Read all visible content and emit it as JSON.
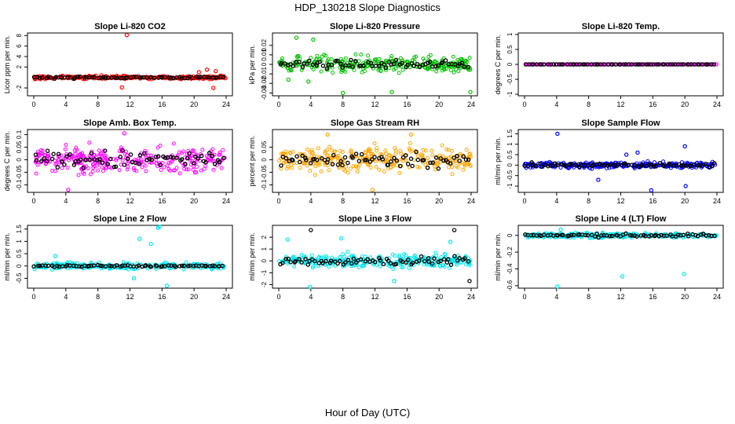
{
  "figure": {
    "title": "HDP_130218  Slope Diagnostics",
    "xlabel": "Hour of Day (UTC)"
  },
  "chart_data": [
    {
      "type": "scatter",
      "title": "Slope Li-820 CO2",
      "ylabel": "Licor ppm per min.",
      "xlim": [
        0,
        24
      ],
      "ylim": [
        -3.5,
        8.5
      ],
      "xticks": [
        0,
        4,
        8,
        12,
        16,
        20,
        24
      ],
      "yticks": [
        -2,
        2,
        4,
        6,
        8
      ],
      "series": [
        {
          "color": "#ff0000",
          "center": 0,
          "spread": 0.35,
          "outliers": [
            [
              11.6,
              8.1
            ],
            [
              11.0,
              -1.9
            ],
            [
              21.6,
              1.5
            ],
            [
              22.4,
              -2.0
            ],
            [
              22.7,
              1.2
            ],
            [
              20.6,
              1.0
            ]
          ]
        },
        {
          "color": "#000000",
          "center": 0,
          "spread": 0.2,
          "outliers": []
        }
      ]
    },
    {
      "type": "scatter",
      "title": "Slope Li-820 Pressure",
      "ylabel": "kPa per min.",
      "xlim": [
        0,
        24
      ],
      "ylim": [
        -0.033,
        0.033
      ],
      "xticks": [
        0,
        4,
        8,
        12,
        16,
        20,
        24
      ],
      "yticks": [
        -0.03,
        -0.02,
        -0.01,
        0.0,
        0.01,
        0.02
      ],
      "series": [
        {
          "color": "#00c000",
          "center": 0,
          "spread": 0.009,
          "outliers": [
            [
              8.0,
              -0.03
            ],
            [
              14.1,
              -0.029
            ],
            [
              23.9,
              -0.029
            ],
            [
              1.2,
              -0.016
            ],
            [
              3.7,
              -0.018
            ],
            [
              2.2,
              0.028
            ],
            [
              4.3,
              0.026
            ]
          ]
        },
        {
          "color": "#000000",
          "center": 0,
          "spread": 0.004,
          "outliers": []
        }
      ]
    },
    {
      "type": "scatter",
      "title": "Slope Li-820 Temp.",
      "ylabel": "degrees C per min.",
      "xlim": [
        0,
        24
      ],
      "ylim": [
        -1.05,
        1.05
      ],
      "xticks": [
        0,
        4,
        8,
        12,
        16,
        20,
        24
      ],
      "yticks": [
        -1.0,
        -0.5,
        0.0,
        0.5,
        1.0
      ],
      "series": [
        {
          "color": "#ff00ff",
          "center": 0,
          "spread": 0.0,
          "outliers": []
        },
        {
          "color": "#000000",
          "center": 0,
          "spread": 0.0,
          "outliers": []
        }
      ]
    },
    {
      "type": "scatter",
      "title": "Slope Amb. Box Temp.",
      "ylabel": "degrees C per min.",
      "xlim": [
        0,
        24
      ],
      "ylim": [
        -0.13,
        0.12
      ],
      "xticks": [
        0,
        4,
        8,
        12,
        16,
        20,
        24
      ],
      "yticks": [
        -0.1,
        -0.05,
        0.0,
        0.05,
        0.1
      ],
      "series": [
        {
          "color": "#ff00ff",
          "center": 0,
          "spread": 0.05,
          "outliers": [
            [
              4.3,
              -0.12
            ],
            [
              11.3,
              0.105
            ]
          ]
        },
        {
          "color": "#000000",
          "center": 0,
          "spread": 0.04,
          "outliers": []
        }
      ]
    },
    {
      "type": "scatter",
      "title": "Slope Gas Stream RH",
      "ylabel": "percent per min.",
      "xlim": [
        0,
        24
      ],
      "ylim": [
        -0.13,
        0.12
      ],
      "xticks": [
        0,
        4,
        8,
        12,
        16,
        20,
        24
      ],
      "yticks": [
        -0.1,
        -0.05,
        0.0,
        0.05
      ],
      "series": [
        {
          "color": "#ffa500",
          "center": 0,
          "spread": 0.05,
          "outliers": [
            [
              6.1,
              0.1
            ],
            [
              11.7,
              -0.12
            ],
            [
              16.5,
              0.1
            ]
          ]
        },
        {
          "color": "#000000",
          "center": 0,
          "spread": 0.03,
          "outliers": []
        }
      ]
    },
    {
      "type": "scatter",
      "title": "Slope Sample Flow",
      "ylabel": "ml/min per min.",
      "xlim": [
        0,
        24
      ],
      "ylim": [
        -1.3,
        1.7
      ],
      "xticks": [
        0,
        4,
        8,
        12,
        16,
        20,
        24
      ],
      "yticks": [
        -1.0,
        -0.5,
        0.0,
        0.5,
        1.0,
        1.5
      ],
      "series": [
        {
          "color": "#0000ff",
          "center": 0,
          "spread": 0.15,
          "outliers": [
            [
              4.1,
              1.5
            ],
            [
              15.8,
              -1.2
            ],
            [
              20.1,
              -1.0
            ],
            [
              9.2,
              -0.7
            ],
            [
              14.1,
              0.6
            ],
            [
              20.0,
              0.9
            ],
            [
              12.7,
              0.5
            ]
          ]
        },
        {
          "color": "#000000",
          "center": 0,
          "spread": 0.1,
          "outliers": []
        }
      ]
    },
    {
      "type": "scatter",
      "title": "Slope Line 2 Flow",
      "ylabel": "ml/min per min.",
      "xlim": [
        0,
        24
      ],
      "ylim": [
        -0.9,
        1.65
      ],
      "xticks": [
        0,
        4,
        8,
        12,
        16,
        20,
        24
      ],
      "yticks": [
        -0.5,
        0.0,
        0.5,
        1.0,
        1.5
      ],
      "series": [
        {
          "color": "#00e5ee",
          "center": 0,
          "spread": 0.14,
          "outliers": [
            [
              15.5,
              1.55
            ],
            [
              15.7,
              1.6
            ],
            [
              13.2,
              1.1
            ],
            [
              14.6,
              0.9
            ],
            [
              12.5,
              -0.5
            ],
            [
              16.6,
              -0.8
            ],
            [
              2.7,
              0.4
            ]
          ]
        },
        {
          "color": "#000000",
          "center": 0,
          "spread": 0.04,
          "outliers": []
        }
      ]
    },
    {
      "type": "scatter",
      "title": "Slope Line 3 Flow",
      "ylabel": "ml/min per min.",
      "xlim": [
        0,
        24
      ],
      "ylim": [
        -2.3,
        3.0
      ],
      "xticks": [
        0,
        4,
        8,
        12,
        16,
        20,
        24
      ],
      "yticks": [
        -2,
        -1,
        0,
        1,
        2
      ],
      "series": [
        {
          "color": "#00e5ee",
          "center": 0,
          "spread": 0.55,
          "outliers": [
            [
              3.9,
              -2.2
            ],
            [
              1.1,
              1.8
            ],
            [
              7.8,
              1.9
            ],
            [
              21.4,
              1.6
            ],
            [
              14.4,
              -1.7
            ]
          ]
        },
        {
          "color": "#000000",
          "center": 0,
          "spread": 0.4,
          "outliers": [
            [
              4.0,
              2.6
            ],
            [
              21.9,
              2.6
            ],
            [
              23.8,
              -1.7
            ]
          ]
        }
      ]
    },
    {
      "type": "scatter",
      "title": "Slope Line 4 (LT) Flow",
      "ylabel": "ml/min per min.",
      "xlim": [
        0,
        24
      ],
      "ylim": [
        -0.63,
        0.12
      ],
      "xticks": [
        0,
        4,
        8,
        12,
        16,
        20,
        24
      ],
      "yticks": [
        -0.6,
        -0.4,
        -0.2,
        0.0
      ],
      "series": [
        {
          "color": "#00e5ee",
          "center": 0,
          "spread": 0.03,
          "outliers": [
            [
              4.1,
              -0.61
            ],
            [
              12.2,
              -0.49
            ],
            [
              19.9,
              -0.46
            ],
            [
              4.5,
              0.07
            ]
          ]
        },
        {
          "color": "#000000",
          "center": 0,
          "spread": 0.02,
          "outliers": []
        }
      ]
    }
  ]
}
